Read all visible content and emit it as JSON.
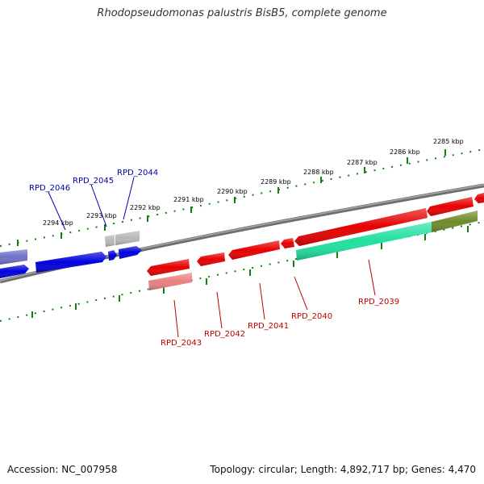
{
  "title": "Rhodopseudomonas palustris BisB5, complete genome",
  "footer": {
    "accession": "Accession: NC_007958",
    "topology": "Topology: circular; Length: 4,892,717 bp; Genes: 4,470"
  },
  "colors": {
    "forward_gene": "#e60000",
    "forward_gene_pale": "#e88080",
    "reverse_gene": "#0000dd",
    "reverse_gene_pale": "#7070c8",
    "hypothetical_gene": "#b8b8b8",
    "rna_feature": "#20e0a0",
    "overlap_feature": "#6f8a28",
    "backbone": "#808080",
    "scale_ticks": "#108010",
    "forward_label": "#c00000",
    "reverse_label": "#0000aa"
  },
  "scale_labels": [
    {
      "text": "2285 kbp"
    },
    {
      "text": "2286 kbp"
    },
    {
      "text": "2287 kbp"
    },
    {
      "text": "2288 kbp"
    },
    {
      "text": "2289 kbp"
    },
    {
      "text": "2290 kbp"
    },
    {
      "text": "2291 kbp"
    },
    {
      "text": "2292 kbp"
    },
    {
      "text": "2293 kbp"
    },
    {
      "text": "2294 kbp"
    }
  ],
  "gene_labels": [
    {
      "text": "RPD_2046",
      "strand": "reverse"
    },
    {
      "text": "RPD_2045",
      "strand": "reverse"
    },
    {
      "text": "RPD_2044",
      "strand": "reverse"
    },
    {
      "text": "RPD_2043",
      "strand": "forward"
    },
    {
      "text": "RPD_2042",
      "strand": "forward"
    },
    {
      "text": "RPD_2041",
      "strand": "forward"
    },
    {
      "text": "RPD_2040",
      "strand": "forward"
    },
    {
      "text": "RPD_2039",
      "strand": "forward"
    }
  ]
}
